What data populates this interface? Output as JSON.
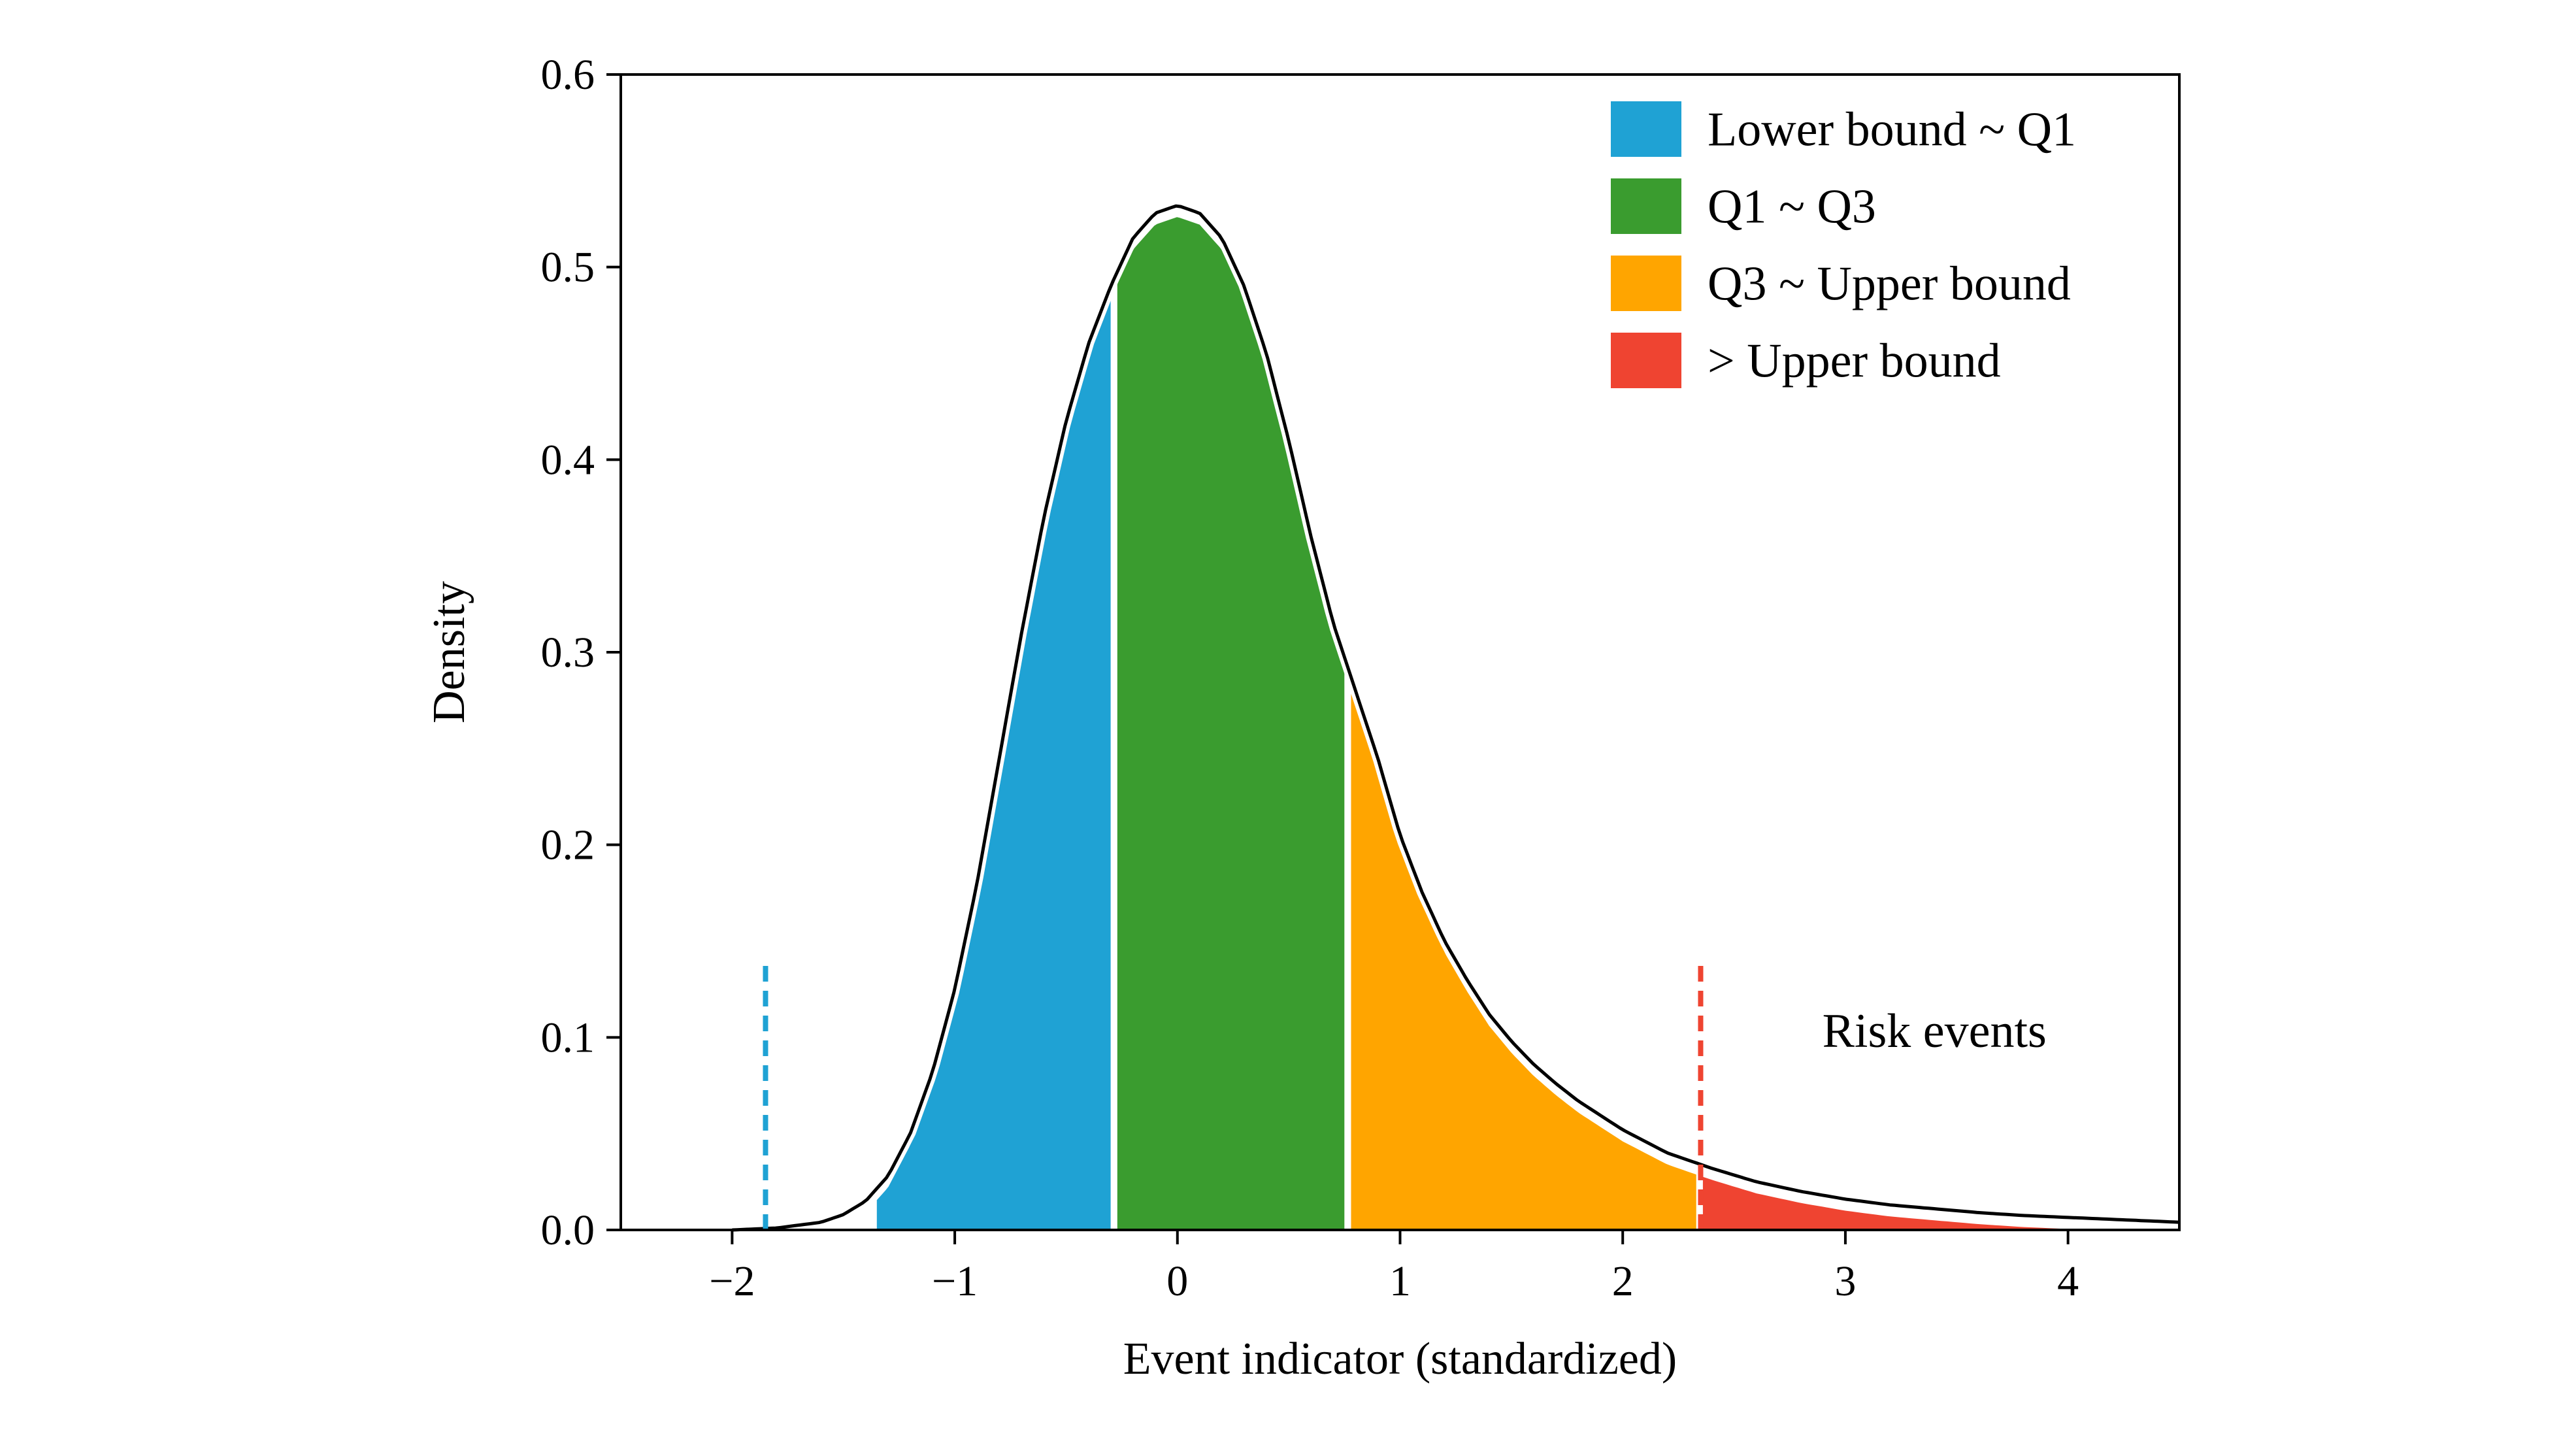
{
  "chart_data": {
    "type": "area",
    "title": "",
    "xlabel": "Event indicator (standardized)",
    "ylabel": "Density",
    "xlim": [
      -2.5,
      4.5
    ],
    "ylim": [
      0,
      0.6
    ],
    "x_ticks": [
      -2,
      -1,
      0,
      1,
      2,
      3,
      4
    ],
    "x_tick_labels": [
      "−2",
      "−1",
      "0",
      "1",
      "2",
      "3",
      "4"
    ],
    "y_ticks": [
      0.0,
      0.1,
      0.2,
      0.3,
      0.4,
      0.5,
      0.6
    ],
    "y_tick_labels": [
      "0.0",
      "0.1",
      "0.2",
      "0.3",
      "0.4",
      "0.5",
      "0.6"
    ],
    "grid": false,
    "legend_position": "top-right",
    "curve": {
      "x": [
        -2.0,
        -1.8,
        -1.6,
        -1.5,
        -1.4,
        -1.3,
        -1.2,
        -1.1,
        -1.0,
        -0.9,
        -0.8,
        -0.7,
        -0.6,
        -0.5,
        -0.4,
        -0.3,
        -0.2,
        -0.1,
        0.0,
        0.1,
        0.2,
        0.3,
        0.4,
        0.5,
        0.6,
        0.7,
        0.8,
        0.9,
        1.0,
        1.1,
        1.2,
        1.3,
        1.4,
        1.5,
        1.6,
        1.7,
        1.8,
        2.0,
        2.2,
        2.4,
        2.6,
        2.8,
        3.0,
        3.2,
        3.4,
        3.6,
        3.8,
        4.0,
        4.2,
        4.5
      ],
      "y": [
        0.0,
        0.001,
        0.004,
        0.008,
        0.015,
        0.028,
        0.05,
        0.082,
        0.125,
        0.18,
        0.245,
        0.31,
        0.37,
        0.42,
        0.46,
        0.49,
        0.515,
        0.528,
        0.532,
        0.528,
        0.515,
        0.49,
        0.455,
        0.41,
        0.36,
        0.315,
        0.28,
        0.245,
        0.205,
        0.175,
        0.15,
        0.13,
        0.112,
        0.098,
        0.086,
        0.076,
        0.067,
        0.052,
        0.04,
        0.032,
        0.025,
        0.02,
        0.016,
        0.013,
        0.011,
        0.009,
        0.0075,
        0.0065,
        0.0055,
        0.004
      ]
    },
    "regions": [
      {
        "name": "Lower bound ~ Q1",
        "from": -1.35,
        "to": -0.3,
        "color": "#1FA2D4"
      },
      {
        "name": "Q1 ~ Q3",
        "from": -0.27,
        "to": 0.75,
        "color": "#3A9C2F"
      },
      {
        "name": "Q3 ~ Upper bound",
        "from": 0.78,
        "to": 2.33,
        "color": "#FFA500"
      },
      {
        "name": "> Upper bound",
        "from": 2.36,
        "to": 4.5,
        "color": "#EF4431"
      }
    ],
    "threshold_lines": [
      {
        "x": -1.85,
        "y_top": 0.14,
        "color": "#1FA2D4",
        "style": "dashed"
      },
      {
        "x": 2.35,
        "y_top": 0.14,
        "color": "#EF4431",
        "style": "dashed"
      }
    ],
    "annotations": [
      {
        "text": "Risk events",
        "x": 3.4,
        "y": 0.095
      }
    ]
  }
}
